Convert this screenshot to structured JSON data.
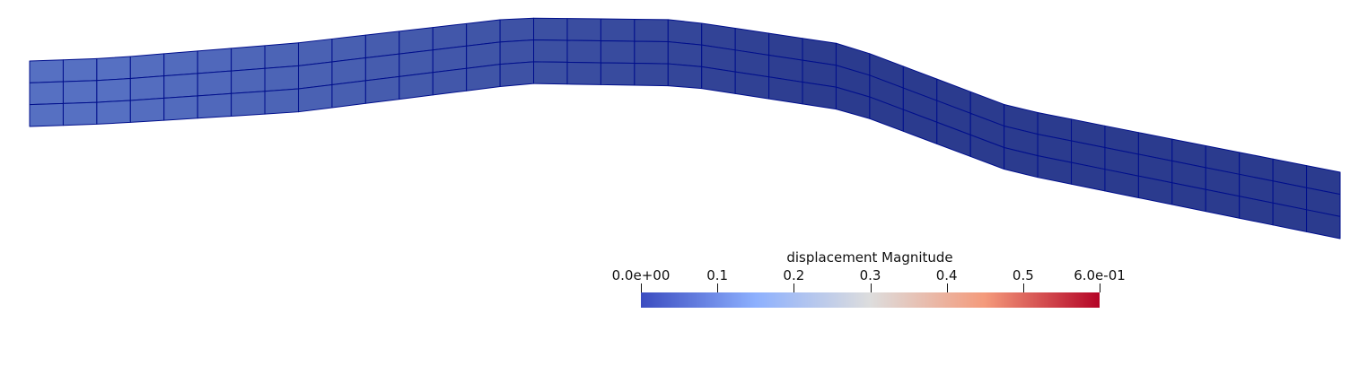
{
  "scene": {
    "mesh": {
      "columns": 39,
      "rows": 3,
      "edge_color": "#000f8c",
      "color_low": "#5670c2",
      "color_high": "#2b3b8e"
    }
  },
  "colorbar": {
    "title": "displacement Magnitude",
    "range": [
      0.0,
      0.6
    ],
    "colormap": "cool-to-warm",
    "stops": [
      "#3b4cc0",
      "#8db0fe",
      "#dddddd",
      "#f49a7b",
      "#b40426"
    ],
    "ticks": [
      {
        "value": 0.0,
        "label": "0.0e+00"
      },
      {
        "value": 0.1,
        "label": "0.1"
      },
      {
        "value": 0.2,
        "label": "0.2"
      },
      {
        "value": 0.3,
        "label": "0.3"
      },
      {
        "value": 0.4,
        "label": "0.4"
      },
      {
        "value": 0.5,
        "label": "0.5"
      },
      {
        "value": 0.6,
        "label": "6.0e-01"
      }
    ]
  }
}
